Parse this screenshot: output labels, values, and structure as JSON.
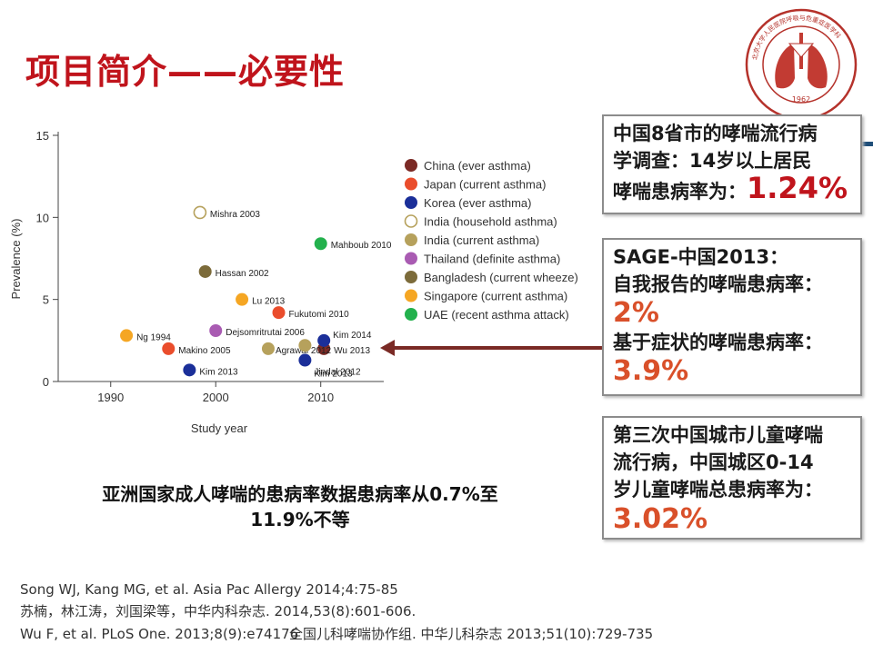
{
  "title": "项目简介——必要性",
  "logo": {
    "text": "北京大学人民医院呼吸与危重症医学科",
    "year": "1962"
  },
  "chart_data": {
    "type": "scatter",
    "title": "",
    "xlabel": "Study year",
    "ylabel": "Prevalence (%)",
    "xlim": [
      1985,
      2016
    ],
    "ylim": [
      0,
      15
    ],
    "xticks": [
      "1990",
      "2000",
      "2010"
    ],
    "yticks": [
      "0",
      "5",
      "10",
      "15"
    ],
    "legend_position": "right",
    "series": [
      {
        "name": "China (ever asthma)",
        "color": "#7b2a25",
        "hollow": false,
        "points": [
          {
            "x": 2010.3,
            "y": 2.0,
            "label": ""
          }
        ]
      },
      {
        "name": "Japan (current asthma)",
        "color": "#ea4d2c",
        "hollow": false,
        "points": [
          {
            "x": 1995.5,
            "y": 2.0,
            "label": "Makino 2005"
          },
          {
            "x": 2006,
            "y": 4.2,
            "label": "Fukutomi 2010"
          }
        ]
      },
      {
        "name": "Korea (ever asthma)",
        "color": "#1b2f99",
        "hollow": false,
        "points": [
          {
            "x": 1997.5,
            "y": 0.7,
            "label": "Kim 2013"
          },
          {
            "x": 2010.3,
            "y": 2.5,
            "label": "Kim 2014"
          },
          {
            "x": 2008.5,
            "y": 1.3,
            "label": "Kim 2013"
          }
        ]
      },
      {
        "name": "India (household asthma)",
        "color": "#b6a15c",
        "hollow": true,
        "points": [
          {
            "x": 1998.5,
            "y": 10.3,
            "label": "Mishra 2003"
          }
        ]
      },
      {
        "name": "India (current asthma)",
        "color": "#b6a15c",
        "hollow": false,
        "points": [
          {
            "x": 2005,
            "y": 2.0,
            "label": "Agrawal 2012"
          },
          {
            "x": 2008.5,
            "y": 2.2,
            "label": ""
          }
        ]
      },
      {
        "name": "Thailand (definite asthma)",
        "color": "#a95bb2",
        "hollow": false,
        "points": [
          {
            "x": 2000,
            "y": 3.1,
            "label": "Dejsomritrutai 2006"
          }
        ]
      },
      {
        "name": "Bangladesh (current wheeze)",
        "color": "#7c6b3a",
        "hollow": false,
        "points": [
          {
            "x": 1999,
            "y": 6.7,
            "label": "Hassan 2002"
          }
        ]
      },
      {
        "name": "Singapore (current asthma)",
        "color": "#f5a623",
        "hollow": false,
        "points": [
          {
            "x": 1991.5,
            "y": 2.8,
            "label": "Ng 1994"
          },
          {
            "x": 2002.5,
            "y": 5.0,
            "label": "Lu 2013"
          }
        ]
      },
      {
        "name": "UAE (recent asthma attack)",
        "color": "#23b14d",
        "hollow": false,
        "points": [
          {
            "x": 2010,
            "y": 8.4,
            "label": "Mahboub 2010"
          }
        ]
      }
    ],
    "extra_labels": [
      {
        "text": "Wu 2013"
      },
      {
        "text": "Jindal 2012"
      }
    ]
  },
  "boxes": {
    "box1": {
      "line1": "中国8省市的哮喘流行病",
      "line2": "学调查：14岁以上居民",
      "line3": "哮喘患病率为：",
      "value": "1.24%"
    },
    "box2": {
      "line1": "SAGE-中国2013：",
      "line2": "自我报告的哮喘患病率：",
      "value1": "2%",
      "line3": "基于症状的哮喘患病率：",
      "value2": "3.9%"
    },
    "box3": {
      "line1": "第三次中国城市儿童哮喘",
      "line2": "流行病，中国城区0-14",
      "line3": "岁儿童哮喘总患病率为：",
      "value": "3.02%"
    }
  },
  "summary": {
    "line1": "亚洲国家成人哮喘的患病率数据患病率从0.7%至",
    "line2": "11.9%不等"
  },
  "references": [
    "Song WJ, Kang MG, et al. Asia Pac Allergy 2014;4:75-85",
    "苏楠，林江涛，刘国梁等，中华内科杂志. 2014,53(8):601-606.",
    "Wu F, et al. PLoS One. 2013;8(9):e74176",
    "全国儿科哮喘协作组. 中华儿科杂志 2013;51(10):729-735"
  ]
}
